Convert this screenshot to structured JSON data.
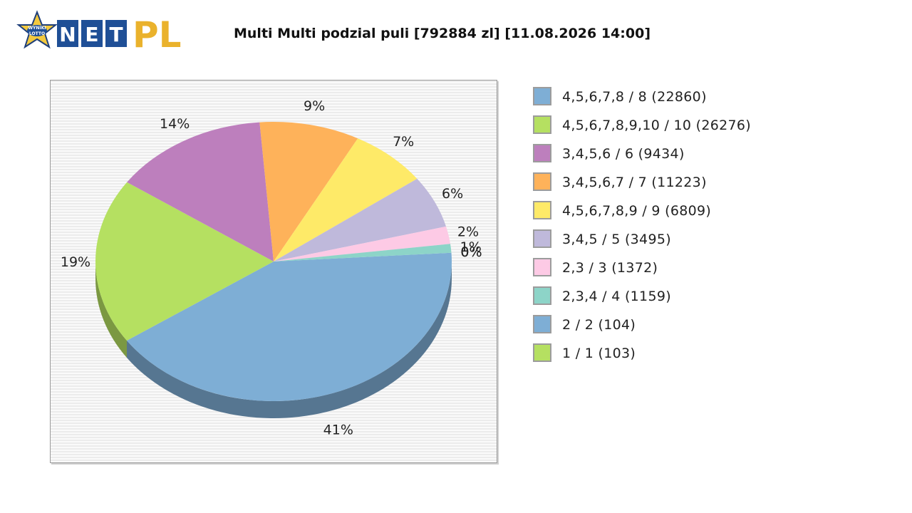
{
  "logo": {
    "badge_line1": "WYNIKI",
    "badge_line2": "LOTTO",
    "letters": [
      "N",
      "E",
      "T"
    ],
    "suffix": "PL"
  },
  "title": "Multi Multi podzial puli [792884 zl] [11.08.2026 14:00]",
  "chart_data": {
    "type": "pie",
    "title": "Multi Multi podzial puli [792884 zl] [11.08.2026 14:00]",
    "legend_position": "right",
    "slices": [
      {
        "label": "4,5,6,7,8 / 8 (22860)",
        "value": 41,
        "pct_label": "41%",
        "color": "#7eaed5"
      },
      {
        "label": "4,5,6,7,8,9,10 / 10 (26276)",
        "value": 19,
        "pct_label": "19%",
        "color": "#b5e061"
      },
      {
        "label": "3,4,5,6 / 6 (9434)",
        "value": 14,
        "pct_label": "14%",
        "color": "#bd7fbd"
      },
      {
        "label": "3,4,5,6,7 / 7 (11223)",
        "value": 9,
        "pct_label": "9%",
        "color": "#feb25a"
      },
      {
        "label": "4,5,6,7,8,9 / 9 (6809)",
        "value": 7,
        "pct_label": "7%",
        "color": "#feea68"
      },
      {
        "label": "3,4,5 / 5 (3495)",
        "value": 6,
        "pct_label": "6%",
        "color": "#bfb9db"
      },
      {
        "label": "2,3 / 3 (1372)",
        "value": 2,
        "pct_label": "2%",
        "color": "#fdcae5"
      },
      {
        "label": "2,3,4 / 4 (1159)",
        "value": 1,
        "pct_label": "1%",
        "color": "#8dd4c8"
      },
      {
        "label": "2 / 2 (104)",
        "value": 0,
        "pct_label": "0%",
        "color": "#7eaed5"
      },
      {
        "label": "1 / 1 (103)",
        "value": 0,
        "pct_label": "0%",
        "color": "#b5e061"
      }
    ]
  }
}
